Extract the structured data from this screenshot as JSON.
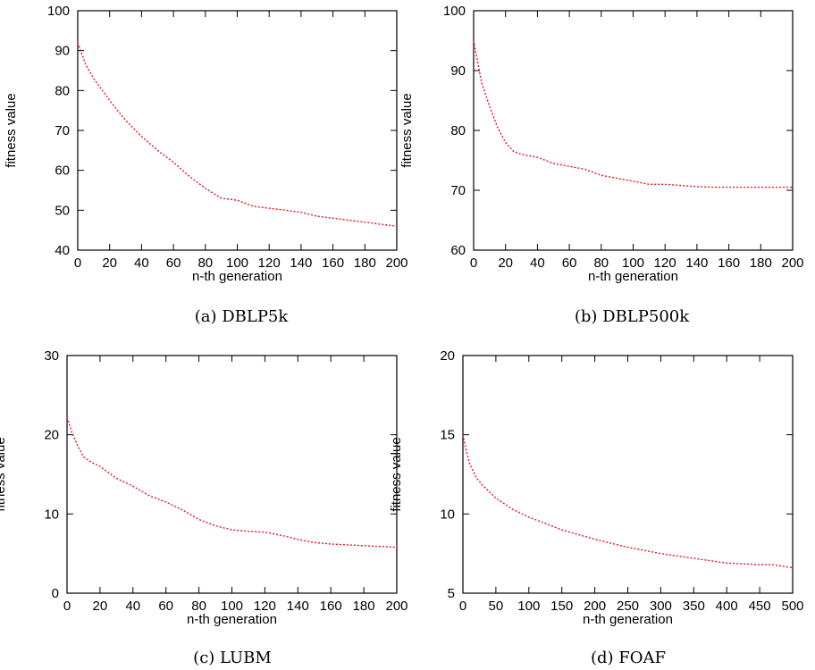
{
  "chart_data": [
    {
      "type": "line",
      "caption": "(a) DBLP5k",
      "xlabel": "n-th generation",
      "ylabel": "fitness value",
      "xlim": [
        0,
        200
      ],
      "ylim": [
        40,
        100
      ],
      "xticks": [
        0,
        20,
        40,
        60,
        80,
        100,
        120,
        140,
        160,
        180,
        200
      ],
      "yticks": [
        40,
        50,
        60,
        70,
        80,
        90,
        100
      ],
      "grid": false,
      "line_color": "#e8141c",
      "line_style": "dotted",
      "series": [
        {
          "x": [
            0,
            5,
            10,
            20,
            30,
            40,
            50,
            60,
            70,
            80,
            90,
            100,
            110,
            120,
            130,
            140,
            150,
            160,
            170,
            180,
            190,
            200
          ],
          "y": [
            92,
            86.5,
            83,
            77.5,
            72.5,
            68.5,
            65,
            62,
            58.5,
            55.5,
            53,
            52.5,
            51,
            50.5,
            50,
            49.5,
            48.5,
            48,
            47.5,
            47,
            46.5,
            46
          ]
        }
      ]
    },
    {
      "type": "line",
      "caption": "(b) DBLP500k",
      "xlabel": "n-th generation",
      "ylabel": "fitness value",
      "xlim": [
        0,
        200
      ],
      "ylim": [
        60,
        100
      ],
      "xticks": [
        0,
        20,
        40,
        60,
        80,
        100,
        120,
        140,
        160,
        180,
        200
      ],
      "yticks": [
        60,
        70,
        80,
        90,
        100
      ],
      "grid": false,
      "line_color": "#e8141c",
      "line_style": "dotted",
      "series": [
        {
          "x": [
            0,
            5,
            10,
            15,
            20,
            25,
            30,
            40,
            50,
            60,
            70,
            80,
            90,
            100,
            110,
            120,
            130,
            140,
            150,
            160,
            170,
            180,
            190,
            200
          ],
          "y": [
            95,
            88,
            84,
            80.5,
            78,
            76.5,
            76,
            75.5,
            74.5,
            74,
            73.5,
            72.5,
            72,
            71.5,
            71,
            71,
            70.8,
            70.6,
            70.5,
            70.5,
            70.5,
            70.5,
            70.5,
            70.5
          ]
        }
      ]
    },
    {
      "type": "line",
      "caption": "(c) LUBM",
      "xlabel": "n-th generation",
      "ylabel": "fitness value",
      "xlim": [
        0,
        200
      ],
      "ylim": [
        0,
        30
      ],
      "xticks": [
        0,
        20,
        40,
        60,
        80,
        100,
        120,
        140,
        160,
        180,
        200
      ],
      "yticks": [
        0,
        10,
        20,
        30
      ],
      "grid": false,
      "line_color": "#e8141c",
      "line_style": "dotted",
      "series": [
        {
          "x": [
            0,
            3,
            6,
            10,
            15,
            20,
            30,
            40,
            50,
            60,
            70,
            80,
            90,
            100,
            110,
            120,
            130,
            140,
            150,
            160,
            170,
            180,
            190,
            200
          ],
          "y": [
            22.2,
            20.3,
            18.8,
            17.2,
            16.5,
            16,
            14.5,
            13.5,
            12.3,
            11.5,
            10.5,
            9.3,
            8.5,
            8,
            7.8,
            7.7,
            7.3,
            6.8,
            6.4,
            6.2,
            6.1,
            6,
            5.9,
            5.8
          ]
        }
      ]
    },
    {
      "type": "line",
      "caption": "(d) FOAF",
      "xlabel": "n-th generation",
      "ylabel": "fitness value",
      "xlim": [
        0,
        500
      ],
      "ylim": [
        5,
        20
      ],
      "xticks": [
        0,
        50,
        100,
        150,
        200,
        250,
        300,
        350,
        400,
        450,
        500
      ],
      "yticks": [
        5,
        10,
        15,
        20
      ],
      "grid": false,
      "line_color": "#e8141c",
      "line_style": "dotted",
      "series": [
        {
          "x": [
            0,
            5,
            10,
            20,
            30,
            50,
            75,
            100,
            150,
            200,
            250,
            300,
            350,
            400,
            450,
            470,
            500
          ],
          "y": [
            15,
            14,
            13.2,
            12.3,
            11.8,
            11,
            10.3,
            9.8,
            9,
            8.4,
            7.9,
            7.5,
            7.2,
            6.9,
            6.8,
            6.8,
            6.6
          ]
        }
      ]
    }
  ]
}
